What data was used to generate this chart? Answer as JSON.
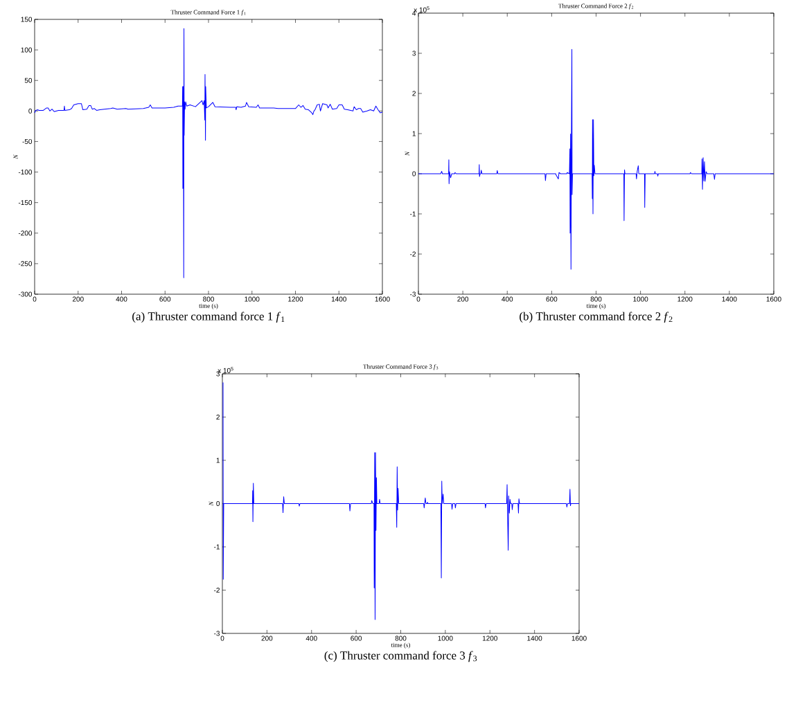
{
  "chart_data": [
    {
      "type": "line",
      "title": "Thruster Command Force 1 *f*$_{1}$",
      "xlabel": "time (s)",
      "ylabel": "N",
      "annotations": [
        "(a) Thruster command force 1 *f*$_{1}$"
      ],
      "xlim": [
        0,
        1600
      ],
      "xticks": [
        0,
        200,
        400,
        600,
        800,
        1000,
        1200,
        1400,
        1600
      ],
      "ylim": [
        -300,
        150
      ],
      "yticks": [
        -300,
        -250,
        -200,
        -150,
        -100,
        -50,
        0,
        50,
        100,
        150
      ],
      "x": [
        0,
        5,
        15,
        20,
        40,
        55,
        62,
        70,
        80,
        90,
        110,
        135,
        137,
        139,
        160,
        170,
        180,
        200,
        215,
        222,
        240,
        250,
        258,
        265,
        275,
        285,
        300,
        350,
        360,
        380,
        420,
        430,
        500,
        525,
        532,
        540,
        600,
        640,
        660,
        680,
        681,
        682,
        684,
        686,
        687,
        688,
        690,
        692,
        695,
        700,
        715,
        740,
        770,
        775,
        780,
        783,
        784,
        786,
        787,
        790,
        800,
        820,
        830,
        900,
        925,
        927,
        930,
        950,
        970,
        975,
        985,
        1020,
        1028,
        1035,
        1100,
        1120,
        1160,
        1200,
        1215,
        1225,
        1235,
        1245,
        1260,
        1275,
        1280,
        1285,
        1290,
        1300,
        1310,
        1315,
        1325,
        1345,
        1350,
        1360,
        1370,
        1390,
        1400,
        1415,
        1425,
        1440,
        1465,
        1470,
        1480,
        1490,
        1500,
        1510,
        1530,
        1545,
        1560,
        1570,
        1580,
        1590,
        1600
      ],
      "series": [
        {
          "color": "#0000ff",
          "values": [
            -3,
            1,
            2,
            1,
            1,
            5,
            5,
            0,
            3,
            -1,
            1,
            1,
            8,
            1,
            2,
            4,
            10,
            12,
            12,
            2,
            3,
            9,
            9,
            3,
            4,
            1,
            2,
            4,
            5,
            3,
            4,
            3,
            4,
            6,
            10,
            5,
            5,
            6,
            8,
            8,
            40,
            -127,
            40,
            -273,
            135,
            -40,
            15,
            3,
            15,
            8,
            10,
            7,
            17,
            10,
            17,
            -15,
            60,
            -48,
            40,
            5,
            7,
            14,
            7,
            6,
            6,
            2,
            7,
            6,
            8,
            14,
            7,
            6,
            10,
            5,
            5,
            4,
            4,
            4,
            10,
            6,
            9,
            3,
            2,
            -3,
            -6,
            0,
            2,
            10,
            11,
            0,
            12,
            10,
            5,
            11,
            3,
            4,
            10,
            10,
            3,
            2,
            0,
            7,
            2,
            4,
            4,
            -2,
            0,
            2,
            0,
            8,
            2,
            -3,
            -2
          ]
        }
      ]
    },
    {
      "type": "line",
      "title": "Thruster Command Force 2 *f*$_{2}$",
      "xlabel": "time (s)",
      "ylabel": "N",
      "annotations": [
        "x 10$^{5}$",
        "(b) Thruster command force 2 *f*$_{2}$"
      ],
      "xlim": [
        0,
        1600
      ],
      "xticks": [
        0,
        200,
        400,
        600,
        800,
        1000,
        1200,
        1400,
        1600
      ],
      "ylim": [
        -3,
        4
      ],
      "yticks": [
        -3,
        -2,
        -1,
        0,
        1,
        2,
        3,
        4
      ],
      "x": [
        0,
        100,
        105,
        108,
        136,
        137,
        138,
        140,
        145,
        150,
        163,
        165,
        170,
        273,
        274,
        275,
        278,
        281,
        283,
        286,
        353,
        355,
        358,
        570,
        572,
        575,
        618,
        620,
        630,
        633,
        640,
        668,
        670,
        680,
        682,
        683,
        685,
        687,
        689,
        691,
        692,
        694,
        700,
        782,
        783,
        784,
        786,
        788,
        790,
        792,
        795,
        925,
        926,
        928,
        930,
        980,
        982,
        985,
        990,
        992,
        1018,
        1019,
        1021,
        1063,
        1065,
        1067,
        1076,
        1078,
        1080,
        1223,
        1225,
        1230,
        1276,
        1277,
        1279,
        1282,
        1285,
        1288,
        1291,
        1295,
        1300,
        1330,
        1333,
        1336,
        1600
      ],
      "series": [
        {
          "color": "#0000ff",
          "values": [
            0,
            0,
            0.06,
            0,
            0,
            0.35,
            -0.25,
            0.05,
            -0.1,
            0,
            0,
            0.03,
            0,
            0,
            0.23,
            -0.07,
            0,
            0,
            0.09,
            0,
            0,
            0.08,
            0,
            0,
            -0.17,
            0,
            0,
            -0.03,
            -0.13,
            0.03,
            0,
            0,
            0.03,
            0,
            0.62,
            -1.48,
            0.99,
            -2.38,
            0.99,
            3.1,
            -0.52,
            0,
            0,
            0,
            -0.62,
            1.35,
            -1,
            1.35,
            -0.05,
            0.21,
            0,
            0,
            -1.17,
            0.1,
            0,
            0,
            -0.13,
            0.06,
            0.2,
            0,
            0,
            -0.84,
            0,
            0,
            0.06,
            0,
            0,
            -0.06,
            0,
            0,
            0.03,
            0,
            0,
            0.37,
            -0.39,
            0.4,
            -0.18,
            0.3,
            -0.19,
            0.05,
            0,
            0,
            -0.14,
            0,
            0
          ]
        }
      ]
    },
    {
      "type": "line",
      "title": "Thruster Command Force 3 *f*$_{3}$",
      "xlabel": "time (s)",
      "ylabel": "N",
      "annotations": [
        "x 10$^{5}$",
        "(c) Thruster command force 3 *f*$_{3}$"
      ],
      "xlim": [
        0,
        1600
      ],
      "xticks": [
        0,
        200,
        400,
        600,
        800,
        1000,
        1200,
        1400,
        1600
      ],
      "ylim": [
        -3,
        3
      ],
      "yticks": [
        -3,
        -2,
        -1,
        0,
        1,
        2,
        3
      ],
      "x": [
        3,
        4,
        6,
        135,
        136,
        137,
        139,
        141,
        270,
        272,
        275,
        278,
        343,
        345,
        348,
        570,
        572,
        575,
        668,
        670,
        675,
        680,
        681,
        683,
        685,
        687,
        689,
        691,
        693,
        703,
        705,
        708,
        780,
        782,
        784,
        786,
        788,
        791,
        903,
        905,
        910,
        913,
        918,
        920,
        922,
        980,
        982,
        984,
        986,
        990,
        993,
        1028,
        1030,
        1033,
        1043,
        1045,
        1048,
        1178,
        1180,
        1183,
        1275,
        1277,
        1279,
        1282,
        1284,
        1287,
        1290,
        1293,
        1298,
        1300,
        1303,
        1326,
        1328,
        1330,
        1333,
        1543,
        1545,
        1548,
        1557,
        1559,
        1561,
        1563,
        1600
      ],
      "series": [
        {
          "color": "#0000ff",
          "values": [
            2.8,
            -1.75,
            0,
            0,
            0.3,
            -0.42,
            0.47,
            0,
            0,
            -0.21,
            0.16,
            0,
            0,
            -0.06,
            0,
            0,
            -0.17,
            0,
            0,
            0.07,
            0,
            0,
            -1.95,
            1.18,
            -2.68,
            1.18,
            -0.62,
            0.6,
            0,
            0,
            0.1,
            0,
            0,
            -0.55,
            0.85,
            -0.15,
            0.35,
            0,
            0,
            -0.1,
            0.13,
            0,
            0,
            0.03,
            0,
            0,
            -1.72,
            0.52,
            0,
            0.22,
            0,
            0,
            -0.13,
            0,
            0,
            -0.1,
            0,
            0,
            -0.1,
            0,
            0,
            0.44,
            -0.2,
            -1.08,
            0.18,
            -0.22,
            0.1,
            0,
            0,
            -0.14,
            0,
            0,
            -0.22,
            0.11,
            0,
            0,
            -0.08,
            0,
            0,
            0.33,
            -0.05,
            0,
            0
          ]
        }
      ]
    }
  ]
}
